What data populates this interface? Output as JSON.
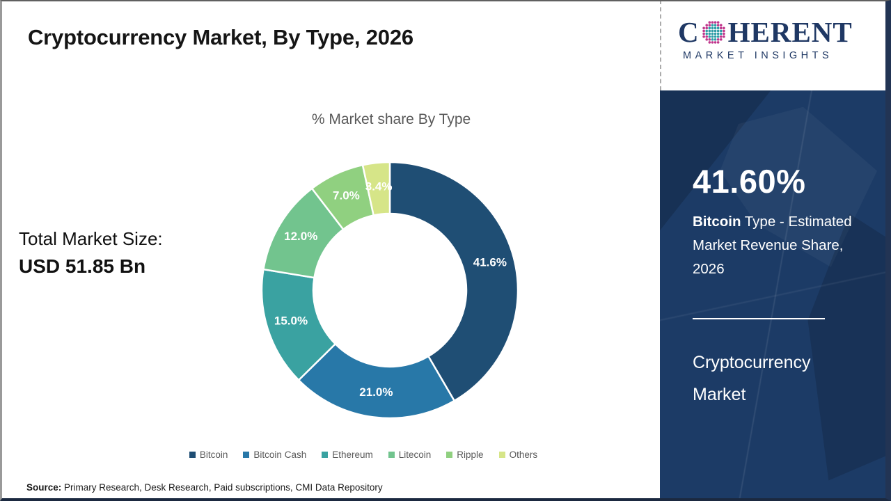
{
  "header": {
    "title": "Cryptocurrency Market, By Type, 2026"
  },
  "logo": {
    "name_start": "C",
    "name_end": "HERENT",
    "tagline": "MARKET INSIGHTS"
  },
  "stats_panel": {
    "stat_value": "41.60%",
    "stat_desc_bold": "Bitcoin",
    "stat_desc_rest": " Type - Estimated Market Revenue Share, 2026",
    "market_name": "Cryptocurrency Market"
  },
  "total_market": {
    "label": "Total Market Size:",
    "value": "USD 51.85 Bn"
  },
  "chart_data": {
    "type": "pie",
    "donut": true,
    "title": "% Market share By Type",
    "start_angle_deg": 0,
    "direction": "clockwise",
    "categories": [
      "Bitcoin",
      "Bitcoin Cash",
      "Ethereum",
      "Litecoin",
      "Ripple",
      "Others"
    ],
    "values": [
      41.6,
      21.0,
      15.0,
      12.0,
      7.0,
      3.4
    ],
    "labels": [
      "41.6%",
      "21.0%",
      "15.0%",
      "12.0%",
      "7.0%",
      "3.4%"
    ],
    "colors": [
      "#1F4E74",
      "#2878A8",
      "#3AA2A1",
      "#72C48E",
      "#90D080",
      "#D6E588"
    ],
    "legend_position": "bottom"
  },
  "footer": {
    "source_label": "Source:",
    "source_text": " Primary Research, Desk Research, Paid subscriptions, CMI Data Repository"
  },
  "theme": {
    "sidebar_bg": "#1C3B66",
    "accent_navy": "#1F3864",
    "chart_title_gray": "#595959",
    "slice_label_color": "#FFFFFF",
    "globe_teal": "#2E9CA6",
    "globe_green": "#6CB33F",
    "globe_magenta": "#C0368C"
  }
}
